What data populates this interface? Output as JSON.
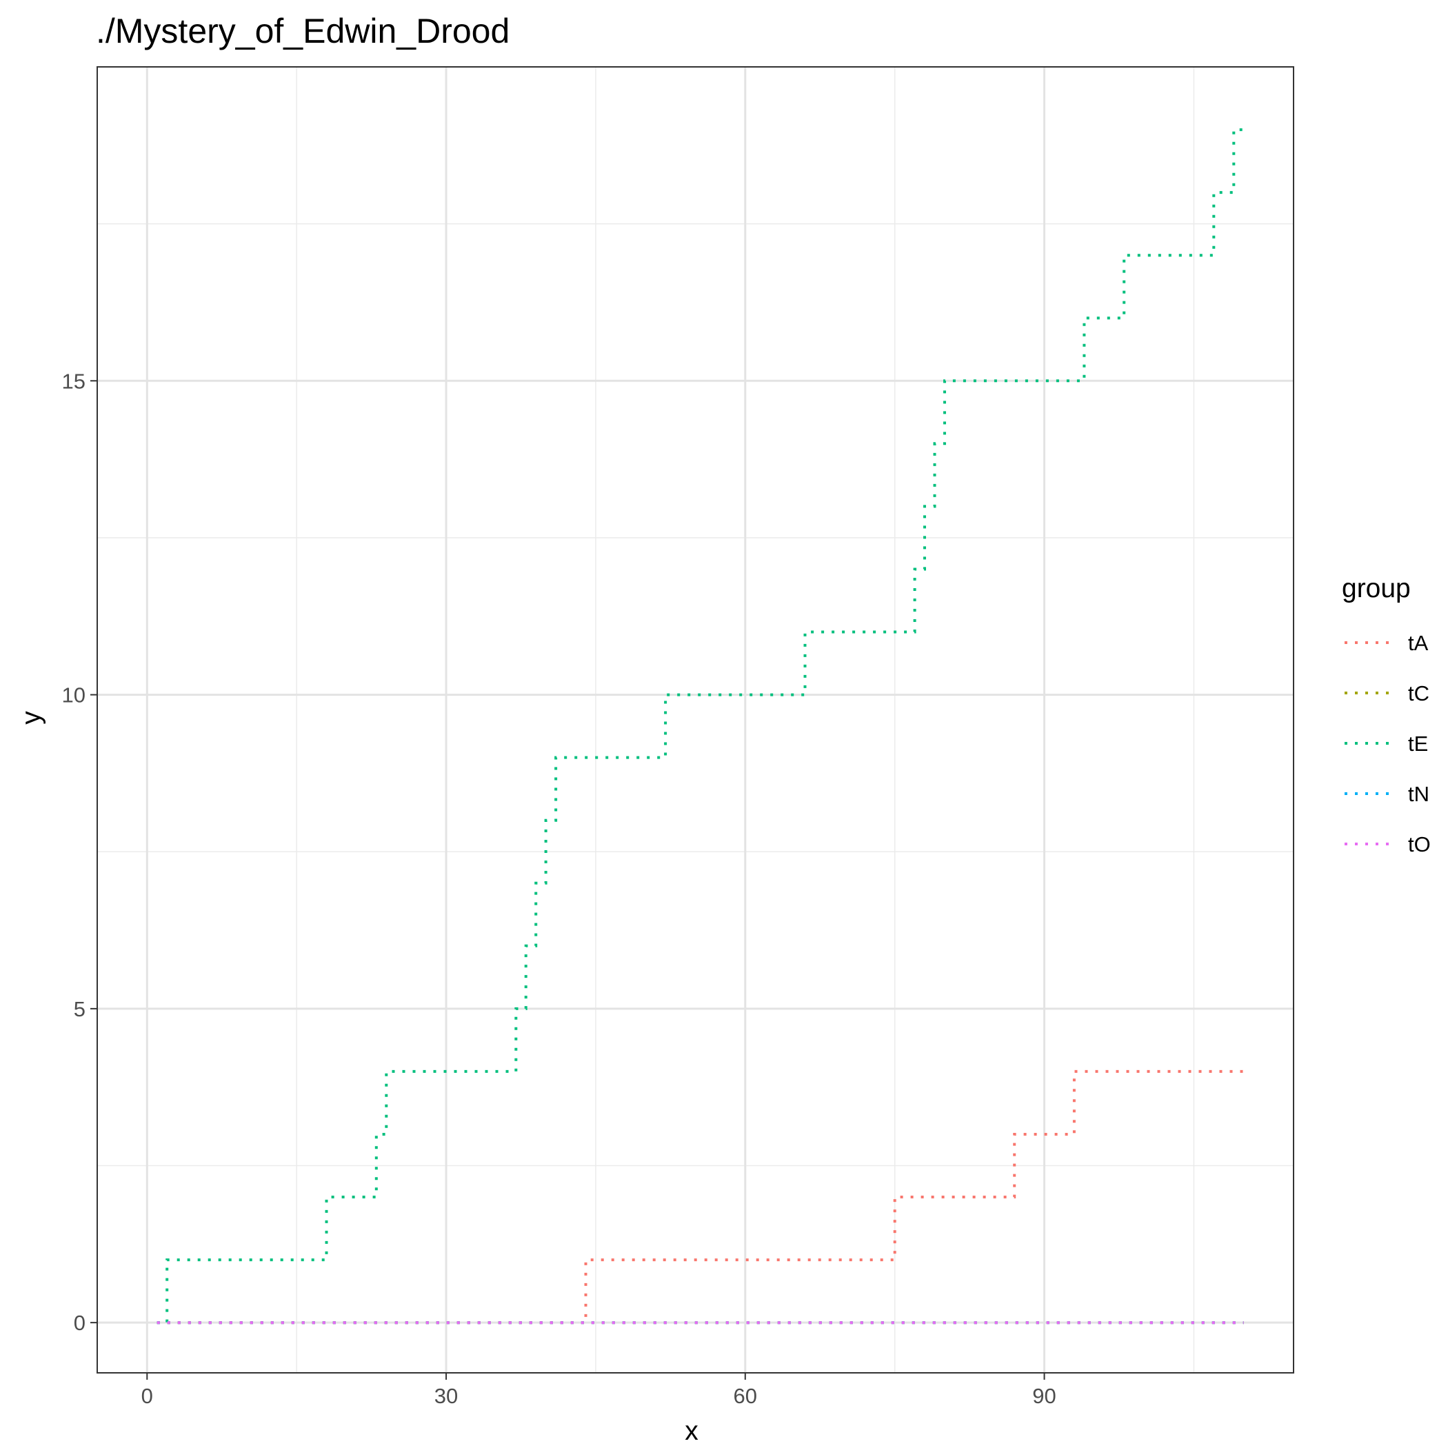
{
  "chart_data": {
    "type": "line",
    "title": "./Mystery_of_Edwin_Drood",
    "xlabel": "x",
    "ylabel": "y",
    "xlim": [
      -5,
      115
    ],
    "ylim": [
      -0.8,
      20
    ],
    "x_ticks": [
      0,
      30,
      60,
      90
    ],
    "x_tick_labels": [
      "0",
      "30",
      "60",
      "90"
    ],
    "x_minor_ticks": [
      15,
      45,
      75,
      105
    ],
    "y_ticks": [
      0,
      5,
      10,
      15
    ],
    "y_tick_labels": [
      "0",
      "5",
      "10",
      "15"
    ],
    "y_minor_ticks": [
      2.5,
      7.5,
      12.5,
      17.5
    ],
    "grid": true,
    "line_style": "dotted",
    "step": true,
    "legend_title": "group",
    "legend_position": "right",
    "series": [
      {
        "name": "tA",
        "color": "#F8766D",
        "x": [
          1,
          44,
          75,
          87,
          93,
          110
        ],
        "y": [
          0,
          1,
          2,
          3,
          4,
          4
        ]
      },
      {
        "name": "tC",
        "color": "#A3A500",
        "x": [
          1,
          110
        ],
        "y": [
          0,
          0
        ]
      },
      {
        "name": "tE",
        "color": "#00BF7D",
        "x": [
          1,
          2,
          18,
          23,
          24,
          37,
          38,
          39,
          40,
          41,
          44,
          52,
          66,
          77,
          78,
          79,
          80,
          81,
          94,
          98,
          107,
          109,
          110
        ],
        "y": [
          0,
          1,
          2,
          3,
          4,
          5,
          6,
          7,
          8,
          9,
          9,
          10,
          11,
          12,
          13,
          14,
          15,
          15,
          16,
          17,
          18,
          19,
          19
        ]
      },
      {
        "name": "tN",
        "color": "#00B0F6",
        "x": [
          1,
          110
        ],
        "y": [
          0,
          0
        ]
      },
      {
        "name": "tO",
        "color": "#E76BF3",
        "x": [
          1,
          110
        ],
        "y": [
          0,
          0
        ]
      }
    ]
  }
}
